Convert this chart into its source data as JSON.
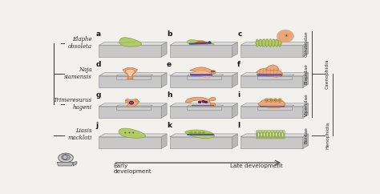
{
  "bg_color": "#f2f1ee",
  "grid_labels": [
    "a",
    "b",
    "c",
    "d",
    "e",
    "f",
    "g",
    "h",
    "i",
    "j",
    "k",
    "l"
  ],
  "row_labels": [
    "Elaphe\nobsoleta",
    "Naja\nsiamensis",
    "Trimeresurus\nhageni",
    "Liasis\nmackloti"
  ],
  "right_labels_inner": [
    "Colubridae",
    "Elapidae",
    "Viperidae",
    "Boidae"
  ],
  "right_label_caeno": "Caenophidia",
  "right_label_heno": "Henophidia",
  "bottom_label_left": "Early\ndevelopment",
  "bottom_label_right": "Late development",
  "green": "#b5c96a",
  "green_dark": "#8aa03a",
  "orange": "#e8a87a",
  "orange_dark": "#c07840",
  "purple": "#5a3570",
  "plate_top": "#dcdcdc",
  "plate_front": "#c8c8c8",
  "plate_right": "#b8b8b8",
  "plate_edge": "#888888",
  "slide_top": "#e8e8e8",
  "text_color": "#2a2a2a",
  "line_color": "#444444"
}
